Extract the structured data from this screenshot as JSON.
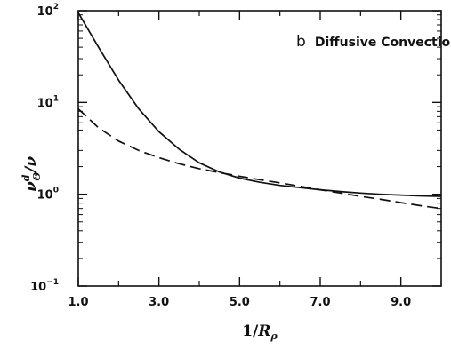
{
  "chart_data": {
    "type": "line",
    "annotation": {
      "letter": "b",
      "text": "Diffusive Convection"
    },
    "xlabel": {
      "base": "1/",
      "var": "R",
      "sub": "ρ"
    },
    "ylabel": {
      "var": "ν",
      "sup": "d",
      "sub": "Θ",
      "rest": "/ν"
    },
    "xlim": [
      1.0,
      10.0
    ],
    "ylim": [
      0.1,
      100
    ],
    "yscale": "log",
    "xticks": [
      1.0,
      3.0,
      5.0,
      7.0,
      9.0
    ],
    "xtick_labels": [
      "1.0",
      "3.0",
      "5.0",
      "7.0",
      "9.0"
    ],
    "xminor": [
      2.0,
      4.0,
      6.0,
      8.0,
      10.0
    ],
    "yticks": [
      {
        "value": 100,
        "base": "10",
        "exp": "2"
      },
      {
        "value": 10,
        "base": "10",
        "exp": "1"
      },
      {
        "value": 1,
        "base": "10",
        "exp": "0"
      },
      {
        "value": 0.1,
        "base": "10",
        "exp": "−1"
      }
    ],
    "grid": false,
    "series": [
      {
        "style": "solid",
        "x": [
          1.0,
          1.5,
          2.0,
          2.5,
          3.0,
          3.5,
          4.0,
          4.5,
          5.0,
          5.5,
          6.0,
          6.5,
          7.0,
          7.5,
          8.0,
          8.5,
          9.0,
          9.5,
          10.0
        ],
        "y": [
          95,
          40,
          17.5,
          8.5,
          4.8,
          3.1,
          2.2,
          1.75,
          1.5,
          1.35,
          1.25,
          1.18,
          1.12,
          1.07,
          1.03,
          1.0,
          0.98,
          0.96,
          0.95
        ]
      },
      {
        "style": "dashed",
        "x": [
          1.0,
          1.5,
          2.0,
          2.5,
          3.0,
          3.5,
          4.0,
          4.5,
          5.0,
          5.5,
          6.0,
          6.5,
          7.0,
          7.5,
          8.0,
          8.5,
          9.0,
          9.5,
          10.0
        ],
        "y": [
          8.5,
          5.3,
          3.8,
          3.0,
          2.5,
          2.15,
          1.9,
          1.72,
          1.57,
          1.44,
          1.33,
          1.22,
          1.12,
          1.03,
          0.95,
          0.88,
          0.81,
          0.75,
          0.7
        ]
      }
    ]
  }
}
